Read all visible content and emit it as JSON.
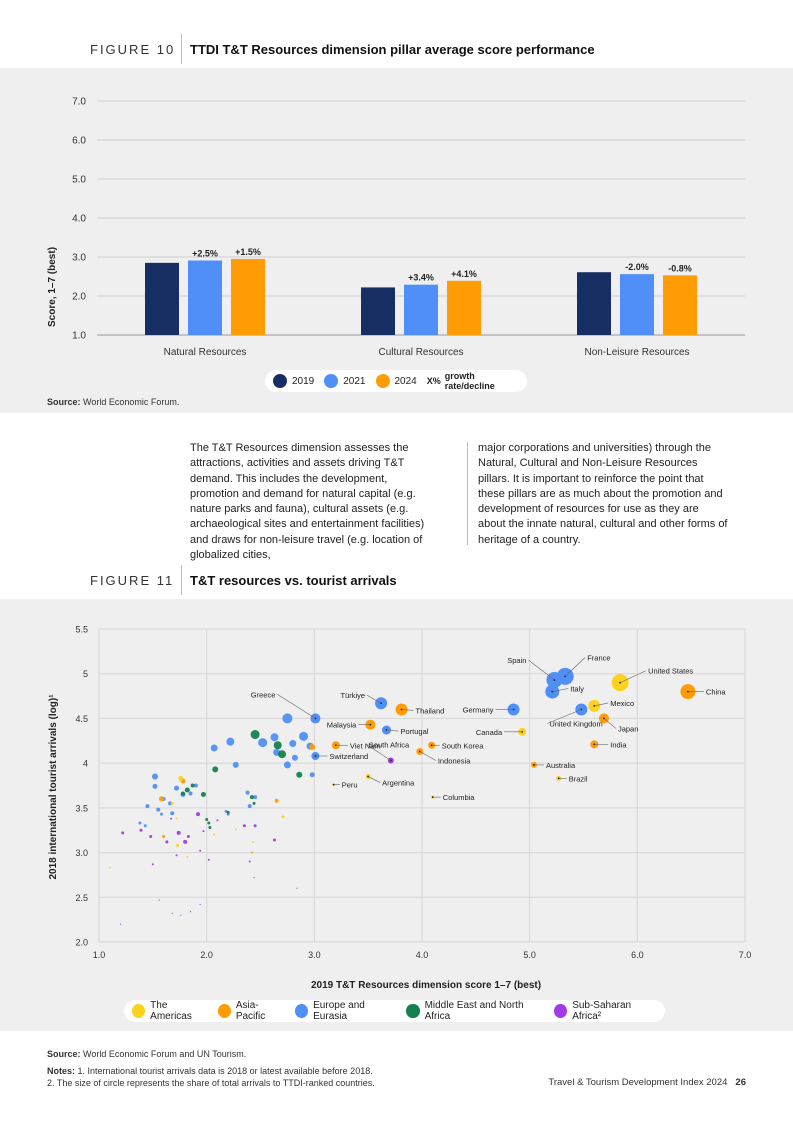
{
  "figure10": {
    "label": "FIGURE 10",
    "title": "TTDI T&T Resources dimension pillar average score performance",
    "source_label": "Source:",
    "source_text": "World Economic Forum.",
    "legend": {
      "y2019": "2019",
      "y2021": "2021",
      "y2024": "2024",
      "growth_marker": "X%",
      "growth_text": "growth rate/decline"
    },
    "colors": {
      "y2019": "#172e63",
      "y2021": "#4f8ff7",
      "y2024": "#ff9c05"
    }
  },
  "chart_data": [
    {
      "type": "bar",
      "title": "TTDI T&T Resources dimension pillar average score performance",
      "ylabel": "Score, 1–7 (best)",
      "ylim": [
        1,
        7
      ],
      "yticks": [
        "1.0",
        "2.0",
        "3.0",
        "4.0",
        "5.0",
        "6.0",
        "7.0"
      ],
      "categories": [
        "Natural Resources",
        "Cultural Resources",
        "Non-Leisure Resources"
      ],
      "series": [
        {
          "name": "2019",
          "values": [
            2.85,
            2.22,
            2.61
          ]
        },
        {
          "name": "2021",
          "values": [
            2.91,
            2.29,
            2.56
          ],
          "labels": [
            "+2.5%",
            "+3.4%",
            "-2.0%"
          ]
        },
        {
          "name": "2024",
          "values": [
            2.95,
            2.39,
            2.53
          ],
          "labels": [
            "+1.5%",
            "+4.1%",
            "-0.8%"
          ]
        }
      ]
    },
    {
      "type": "scatter",
      "title": "T&T resources vs. tourist arrivals",
      "xlabel": "2019 T&T Resources dimension score 1–7 (best)",
      "ylabel": "2018 international tourist arrivals (log)¹",
      "xlim": [
        1,
        7
      ],
      "ylim": [
        2,
        5.5
      ],
      "xticks": [
        "1.0",
        "2.0",
        "3.0",
        "4.0",
        "5.0",
        "6.0",
        "7.0"
      ],
      "yticks": [
        "2.0",
        "2.5",
        "3.0",
        "3.5",
        "4",
        "4.5",
        "5",
        "5.5"
      ],
      "regions": [
        {
          "name": "The Americas",
          "color": "#fcd21e"
        },
        {
          "name": "Asia-Pacific",
          "color": "#ff9c05"
        },
        {
          "name": "Europe and Eurasia",
          "color": "#4f8ff7"
        },
        {
          "name": "Middle East and North Africa",
          "color": "#15804f"
        },
        {
          "name": "Sub-Saharan Africa²",
          "color": "#a23ae6"
        }
      ],
      "labeled_points": [
        {
          "name": "Spain",
          "region": 2,
          "x": 5.23,
          "y": 4.93,
          "size": 16
        },
        {
          "name": "France",
          "region": 2,
          "x": 5.33,
          "y": 4.97,
          "size": 17
        },
        {
          "name": "United States",
          "region": 0,
          "x": 5.84,
          "y": 4.9,
          "size": 17
        },
        {
          "name": "China",
          "region": 1,
          "x": 6.47,
          "y": 4.8,
          "size": 15
        },
        {
          "name": "Italy",
          "region": 2,
          "x": 5.21,
          "y": 4.8,
          "size": 14
        },
        {
          "name": "Mexico",
          "region": 0,
          "x": 5.6,
          "y": 4.64,
          "size": 12
        },
        {
          "name": "Germany",
          "region": 2,
          "x": 4.85,
          "y": 4.6,
          "size": 12
        },
        {
          "name": "United Kingdom",
          "region": 2,
          "x": 5.48,
          "y": 4.6,
          "size": 12
        },
        {
          "name": "Japan",
          "region": 1,
          "x": 5.69,
          "y": 4.5,
          "size": 10
        },
        {
          "name": "Canada",
          "region": 0,
          "x": 4.93,
          "y": 4.35,
          "size": 8
        },
        {
          "name": "India",
          "region": 1,
          "x": 5.6,
          "y": 4.21,
          "size": 8
        },
        {
          "name": "Australia",
          "region": 1,
          "x": 5.04,
          "y": 3.98,
          "size": 6
        },
        {
          "name": "Brazil",
          "region": 0,
          "x": 5.27,
          "y": 3.83,
          "size": 5
        },
        {
          "name": "Greece",
          "region": 2,
          "x": 3.01,
          "y": 4.5,
          "size": 10
        },
        {
          "name": "Türkiye",
          "region": 2,
          "x": 3.62,
          "y": 4.67,
          "size": 12
        },
        {
          "name": "Thailand",
          "region": 1,
          "x": 3.81,
          "y": 4.6,
          "size": 12
        },
        {
          "name": "Malaysia",
          "region": 1,
          "x": 3.52,
          "y": 4.43,
          "size": 10
        },
        {
          "name": "Portugal",
          "region": 2,
          "x": 3.67,
          "y": 4.37,
          "size": 9
        },
        {
          "name": "Viet Nam",
          "region": 1,
          "x": 3.2,
          "y": 4.2,
          "size": 8
        },
        {
          "name": "Switzerland",
          "region": 2,
          "x": 3.01,
          "y": 4.08,
          "size": 8
        },
        {
          "name": "South Korea",
          "region": 1,
          "x": 4.09,
          "y": 4.2,
          "size": 7
        },
        {
          "name": "Indonesia",
          "region": 1,
          "x": 3.98,
          "y": 4.13,
          "size": 7
        },
        {
          "name": "South Africa",
          "region": 4,
          "x": 3.71,
          "y": 4.03,
          "size": 6
        },
        {
          "name": "Argentina",
          "region": 0,
          "x": 3.5,
          "y": 3.85,
          "size": 5
        },
        {
          "name": "Peru",
          "region": 0,
          "x": 3.18,
          "y": 3.76,
          "size": 3
        },
        {
          "name": "Columbia",
          "region": 0,
          "x": 4.1,
          "y": 3.62,
          "size": 3
        }
      ],
      "other_points": [
        [
          2.75,
          4.5,
          2,
          10
        ],
        [
          2.9,
          4.3,
          2,
          9
        ],
        [
          2.63,
          4.29,
          2,
          8
        ],
        [
          2.52,
          4.23,
          2,
          9
        ],
        [
          2.22,
          4.24,
          2,
          8
        ],
        [
          2.07,
          4.17,
          2,
          7
        ],
        [
          2.8,
          4.22,
          2,
          7
        ],
        [
          2.96,
          4.19,
          2,
          7
        ],
        [
          2.65,
          4.12,
          2,
          7
        ],
        [
          2.75,
          3.98,
          2,
          7
        ],
        [
          2.82,
          4.06,
          2,
          6
        ],
        [
          2.27,
          3.98,
          2,
          6
        ],
        [
          2.98,
          3.87,
          2,
          5
        ],
        [
          1.52,
          3.85,
          2,
          6
        ],
        [
          1.52,
          3.74,
          2,
          5
        ],
        [
          1.72,
          3.72,
          2,
          5
        ],
        [
          1.78,
          3.65,
          2,
          5
        ],
        [
          1.6,
          3.6,
          2,
          4
        ],
        [
          1.66,
          3.55,
          2,
          4
        ],
        [
          1.45,
          3.52,
          2,
          4
        ],
        [
          1.55,
          3.48,
          2,
          4
        ],
        [
          1.68,
          3.44,
          2,
          4
        ],
        [
          1.43,
          3.3,
          2,
          3
        ],
        [
          1.38,
          3.33,
          2,
          3
        ],
        [
          1.58,
          3.43,
          2,
          3
        ],
        [
          2.38,
          3.67,
          2,
          4
        ],
        [
          2.45,
          3.62,
          2,
          4
        ],
        [
          2.2,
          3.43,
          2,
          3
        ],
        [
          2.18,
          3.46,
          2,
          3
        ],
        [
          2.4,
          3.52,
          2,
          4
        ],
        [
          1.85,
          3.66,
          2,
          4
        ],
        [
          1.9,
          3.75,
          2,
          4
        ],
        [
          2.45,
          4.32,
          3,
          9
        ],
        [
          2.66,
          4.2,
          3,
          8
        ],
        [
          2.7,
          4.1,
          3,
          8
        ],
        [
          2.86,
          3.87,
          3,
          6
        ],
        [
          2.08,
          3.93,
          3,
          6
        ],
        [
          1.82,
          3.7,
          3,
          5
        ],
        [
          1.97,
          3.65,
          3,
          5
        ],
        [
          2.42,
          3.62,
          3,
          4
        ],
        [
          1.87,
          3.75,
          3,
          4
        ],
        [
          1.78,
          3.66,
          3,
          4
        ],
        [
          2.02,
          3.33,
          3,
          3
        ],
        [
          2.0,
          3.37,
          3,
          3
        ],
        [
          2.03,
          3.28,
          3,
          3
        ],
        [
          2.2,
          3.45,
          3,
          3
        ],
        [
          2.44,
          3.55,
          3,
          3
        ],
        [
          2.65,
          3.58,
          1,
          4
        ],
        [
          2.98,
          4.18,
          1,
          6
        ],
        [
          1.58,
          3.6,
          1,
          5
        ],
        [
          1.78,
          3.8,
          1,
          5
        ],
        [
          1.6,
          3.18,
          1,
          3
        ],
        [
          2.42,
          3.0,
          1,
          2
        ],
        [
          1.73,
          3.08,
          0,
          3
        ],
        [
          2.71,
          3.4,
          0,
          3
        ],
        [
          1.76,
          3.83,
          0,
          5
        ],
        [
          1.68,
          3.55,
          0,
          3
        ],
        [
          1.72,
          3.38,
          0,
          2
        ],
        [
          1.1,
          2.83,
          0,
          2
        ],
        [
          2.43,
          3.12,
          0,
          2
        ],
        [
          2.27,
          3.26,
          0,
          2
        ],
        [
          2.07,
          3.2,
          0,
          2
        ],
        [
          1.82,
          2.95,
          0,
          2
        ],
        [
          1.92,
          3.43,
          4,
          4
        ],
        [
          1.8,
          3.12,
          4,
          4
        ],
        [
          1.74,
          3.22,
          4,
          4
        ],
        [
          1.83,
          3.18,
          4,
          3
        ],
        [
          1.63,
          3.12,
          4,
          3
        ],
        [
          1.48,
          3.18,
          4,
          3
        ],
        [
          1.39,
          3.25,
          4,
          3
        ],
        [
          1.22,
          3.22,
          4,
          3
        ],
        [
          1.5,
          2.87,
          4,
          2
        ],
        [
          1.72,
          2.97,
          4,
          2
        ],
        [
          1.94,
          3.02,
          4,
          2
        ],
        [
          2.02,
          2.92,
          4,
          2
        ],
        [
          2.35,
          3.3,
          4,
          3
        ],
        [
          2.45,
          3.3,
          4,
          3
        ],
        [
          2.63,
          3.14,
          4,
          3
        ],
        [
          2.4,
          2.9,
          4,
          2
        ],
        [
          1.67,
          3.38,
          4,
          2
        ],
        [
          2.1,
          3.36,
          4,
          2
        ],
        [
          1.97,
          3.24,
          4,
          2
        ],
        [
          1.56,
          2.47,
          4,
          1
        ],
        [
          1.2,
          2.2,
          4,
          1
        ],
        [
          1.68,
          2.32,
          4,
          1
        ],
        [
          1.76,
          2.3,
          4,
          1
        ],
        [
          1.85,
          2.34,
          4,
          1
        ],
        [
          1.94,
          2.42,
          4,
          1
        ],
        [
          2.44,
          2.72,
          4,
          1
        ],
        [
          2.84,
          2.6,
          4,
          1
        ]
      ]
    }
  ],
  "body": {
    "col1": "The T&T Resources dimension assesses the attractions, activities and assets driving T&T demand. This includes the development, promotion and demand for natural capital (e.g. nature parks and fauna), cultural assets (e.g. archaeological sites and entertainment facilities) and draws for non-leisure travel (e.g. location of globalized cities,",
    "col2": "major corporations and universities) through the Natural, Cultural and Non-Leisure Resources pillars. It is important to reinforce the point that these pillars are as much about the promotion and development of resources for use as they are about the innate natural, cultural and other forms of heritage of a country."
  },
  "figure11": {
    "label": "FIGURE 11",
    "title": "T&T resources vs. tourist arrivals",
    "source_label": "Source:",
    "source_text": "World Economic Forum and UN Tourism.",
    "notes_label": "Notes:",
    "note1": "1. International tourist arrivals data is 2018 or latest available before 2018.",
    "note2": "2. The size of circle represents the share of total arrivals to TTDI-ranked countries."
  },
  "footer": {
    "title": "Travel & Tourism Development Index 2024",
    "page": "26"
  }
}
